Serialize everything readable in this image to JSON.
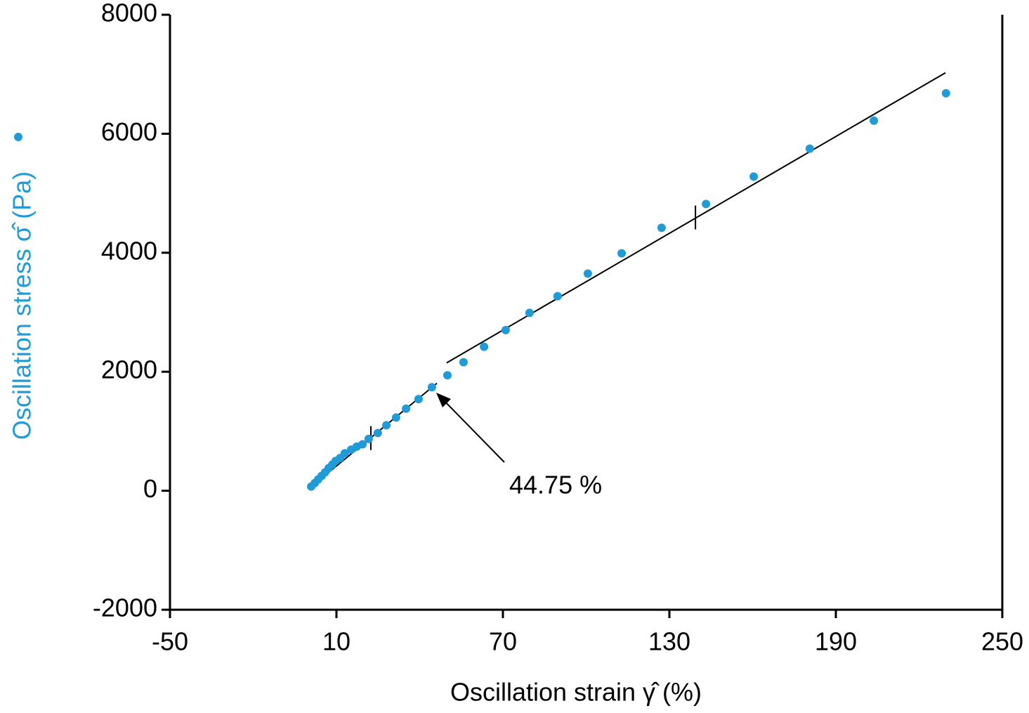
{
  "chart_data": {
    "type": "scatter",
    "x_label": "Oscillation strain γ̂ (%)",
    "y_label": "Oscillation stress σ̂ (Pa)",
    "xlim": [
      -50,
      250
    ],
    "xticks": [
      -50,
      10,
      70,
      130,
      190,
      250
    ],
    "ylim": [
      -2000,
      8000
    ],
    "yticks": [
      -2000,
      0,
      2000,
      4000,
      6000,
      8000
    ],
    "annotation": "44.75 %",
    "series": [
      {
        "color": "#1f9bd7",
        "x": [
          0.9,
          2.2,
          3.4,
          4.7,
          5.9,
          7.2,
          8.5,
          9.7,
          11.3,
          13.0,
          15.3,
          17.3,
          19.4,
          21.6,
          24.9,
          28.0,
          31.5,
          35.1,
          39.6,
          44.4,
          50.0,
          55.8,
          63.2,
          71.0,
          79.6,
          89.7,
          100.6,
          112.8,
          127.2,
          143.2,
          160.4,
          180.6,
          203.7,
          229.7
        ],
        "values": [
          70,
          130,
          190,
          250,
          310,
          380,
          440,
          500,
          550,
          630,
          690,
          740,
          780,
          870,
          970,
          1100,
          1230,
          1380,
          1540,
          1740,
          1940,
          2160,
          2420,
          2700,
          2990,
          3270,
          3650,
          3990,
          4420,
          4820,
          5280,
          5750,
          6220,
          6680
        ]
      }
    ],
    "fit_lines": [
      {
        "x": [
          0.1,
          46.2
        ],
        "values": [
          35,
          1806
        ]
      },
      {
        "x": [
          49.7,
          229.5
        ],
        "values": [
          2149,
          7025
        ]
      }
    ],
    "markers": {
      "x": [
        22.4,
        139.4
      ],
      "values": [
        885,
        4593
      ]
    }
  }
}
